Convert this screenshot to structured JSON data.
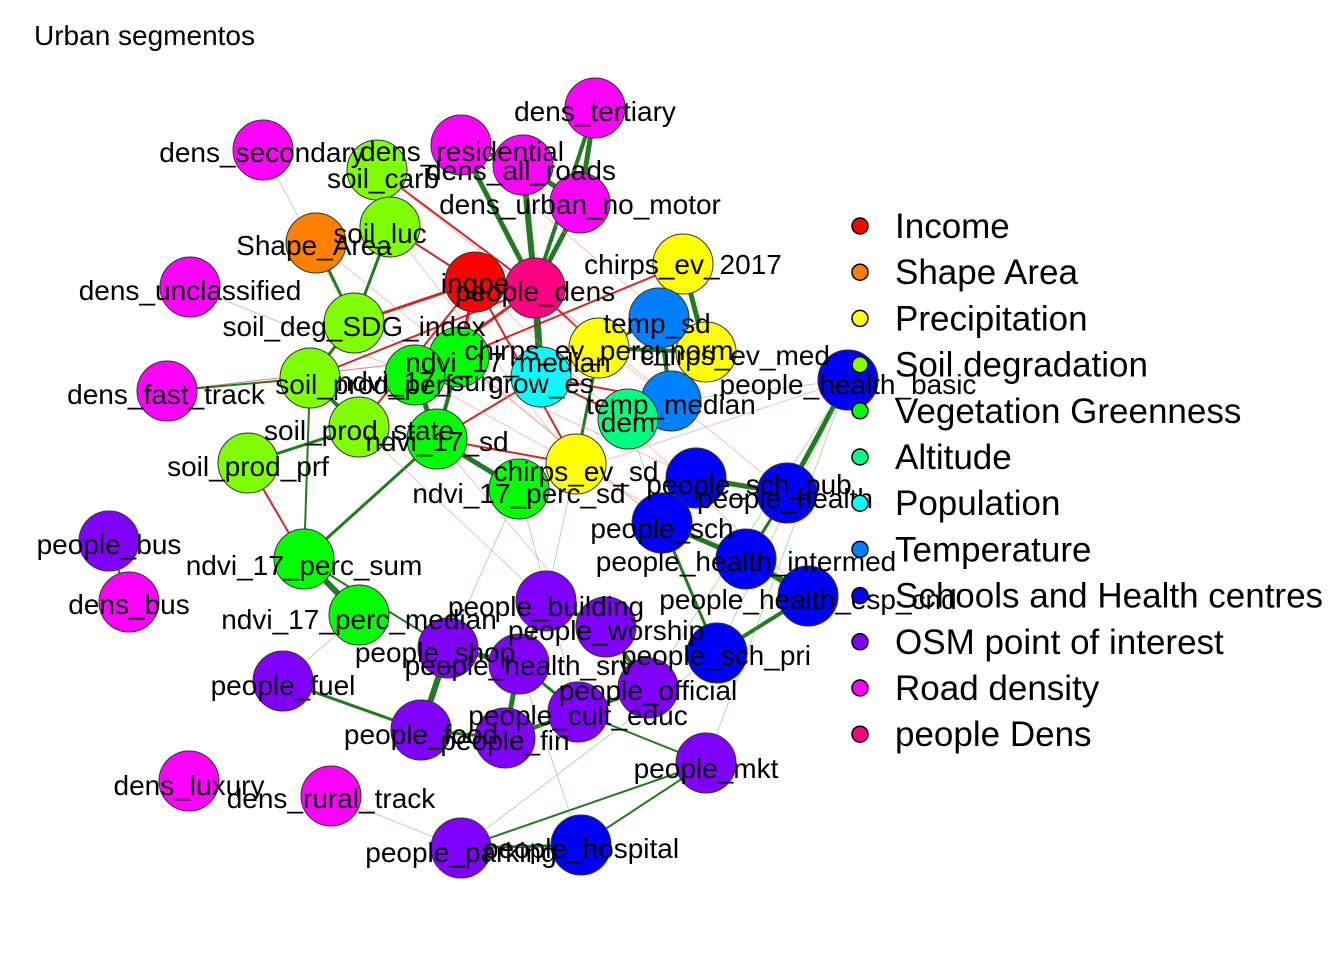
{
  "title": "Urban segmentos",
  "legend": [
    {
      "label": "Income",
      "color": "#FF0000"
    },
    {
      "label": "Shape Area",
      "color": "#FF8000"
    },
    {
      "label": "Precipitation",
      "color": "#FFFF00"
    },
    {
      "label": "Soil degradation",
      "color": "#80FF00"
    },
    {
      "label": "Vegetation Greenness",
      "color": "#00FF00"
    },
    {
      "label": "Altitude",
      "color": "#00FF80"
    },
    {
      "label": "Population",
      "color": "#00FFFF"
    },
    {
      "label": "Temperature",
      "color": "#0080FF"
    },
    {
      "label": "Schools and Health centres",
      "color": "#0000FF"
    },
    {
      "label": "OSM point of interest",
      "color": "#8000FF"
    },
    {
      "label": "Road density",
      "color": "#FF00FF"
    },
    {
      "label": "people Dens",
      "color": "#FF0080"
    }
  ],
  "nodes": [
    {
      "id": "dens_tertiary",
      "group": "Road density"
    },
    {
      "id": "dens_secondary",
      "group": "Road density"
    },
    {
      "id": "dens_residential",
      "group": "Road density"
    },
    {
      "id": "dens_all_roads",
      "group": "Road density"
    },
    {
      "id": "dens_urban_no_motor",
      "group": "Road density"
    },
    {
      "id": "dens_unclassified",
      "group": "Road density"
    },
    {
      "id": "dens_fast_track",
      "group": "Road density"
    },
    {
      "id": "dens_bus",
      "group": "Road density"
    },
    {
      "id": "dens_luxury",
      "group": "Road density"
    },
    {
      "id": "dens_rural_track",
      "group": "Road density"
    },
    {
      "id": "soil_carb",
      "group": "Soil degradation"
    },
    {
      "id": "soil_luc",
      "group": "Soil degradation"
    },
    {
      "id": "soil_deg_SDG_index",
      "group": "Soil degradation"
    },
    {
      "id": "soil_prod_perf",
      "group": "Soil degradation"
    },
    {
      "id": "soil_prod_state",
      "group": "Soil degradation"
    },
    {
      "id": "soil_prod_prf",
      "group": "Soil degradation"
    },
    {
      "id": "Shape_Area",
      "group": "Shape Area"
    },
    {
      "id": "ingpe",
      "group": "Income"
    },
    {
      "id": "people_dens",
      "group": "people Dens"
    },
    {
      "id": "chirps_ev_2017",
      "group": "Precipitation"
    },
    {
      "id": "chirps_ev_perc_norm",
      "group": "Precipitation"
    },
    {
      "id": "chirps_ev_med",
      "group": "Precipitation"
    },
    {
      "id": "chirps_ev_sd",
      "group": "Precipitation"
    },
    {
      "id": "temp_sd",
      "group": "Temperature"
    },
    {
      "id": "temp_median",
      "group": "Temperature"
    },
    {
      "id": "grow_es",
      "group": "Population"
    },
    {
      "id": "dem",
      "group": "Altitude"
    },
    {
      "id": "ndvi_17_median",
      "group": "Vegetation Greenness"
    },
    {
      "id": "ndvi_17_sum",
      "group": "Vegetation Greenness"
    },
    {
      "id": "ndvi_17_sd",
      "group": "Vegetation Greenness"
    },
    {
      "id": "ndvi_17_perc_sd",
      "group": "Vegetation Greenness"
    },
    {
      "id": "ndvi_17_perc_sum",
      "group": "Vegetation Greenness"
    },
    {
      "id": "ndvi_17_perc_median",
      "group": "Vegetation Greenness"
    },
    {
      "id": "people_health_basic",
      "group": "Schools and Health centres"
    },
    {
      "id": "people_sch_pub",
      "group": "Schools and Health centres"
    },
    {
      "id": "people_health",
      "group": "Schools and Health centres"
    },
    {
      "id": "people_sch",
      "group": "Schools and Health centres"
    },
    {
      "id": "people_health_intermed",
      "group": "Schools and Health centres"
    },
    {
      "id": "people_health_esp_cnd",
      "group": "Schools and Health centres"
    },
    {
      "id": "people_sch_pri",
      "group": "Schools and Health centres"
    },
    {
      "id": "people_hospital",
      "group": "Schools and Health centres"
    },
    {
      "id": "people_bus",
      "group": "OSM point of interest"
    },
    {
      "id": "people_building",
      "group": "OSM point of interest"
    },
    {
      "id": "people_worship",
      "group": "OSM point of interest"
    },
    {
      "id": "people_shop",
      "group": "OSM point of interest"
    },
    {
      "id": "people_health_srv",
      "group": "OSM point of interest"
    },
    {
      "id": "people_official",
      "group": "OSM point of interest"
    },
    {
      "id": "people_fuel",
      "group": "OSM point of interest"
    },
    {
      "id": "people_cult_educ",
      "group": "OSM point of interest"
    },
    {
      "id": "people_food",
      "group": "OSM point of interest"
    },
    {
      "id": "people_fin",
      "group": "OSM point of interest"
    },
    {
      "id": "people_mkt",
      "group": "OSM point of interest"
    },
    {
      "id": "people_parking",
      "group": "OSM point of interest"
    }
  ]
}
